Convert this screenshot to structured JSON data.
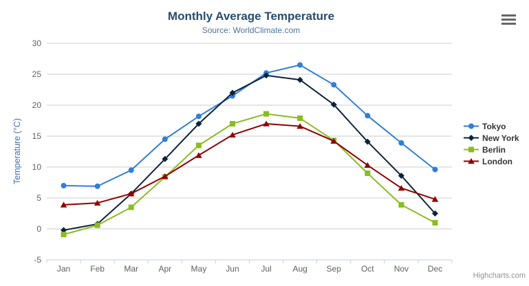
{
  "credits": "Highcharts.com",
  "menu_icon": "hamburger-menu",
  "colors": {
    "title": "#274b6d",
    "subtitle": "#4d759e",
    "y_axis_title": "#4572a7",
    "tick_label": "#606060",
    "axis_line": "#c0d0e0",
    "grid_line": "#cccccc",
    "legend_text": "#333333",
    "credits_text": "#909090",
    "menu_icon": "#666666"
  },
  "chart_data": {
    "type": "line",
    "title": "Monthly Average Temperature",
    "subtitle": "Source: WorldClimate.com",
    "xlabel": "",
    "ylabel": "Temperature (°C)",
    "ylim": [
      -5,
      30
    ],
    "yticks": [
      -5,
      0,
      5,
      10,
      15,
      20,
      25,
      30
    ],
    "grid": true,
    "legend_position": "right",
    "categories": [
      "Jan",
      "Feb",
      "Mar",
      "Apr",
      "May",
      "Jun",
      "Jul",
      "Aug",
      "Sep",
      "Oct",
      "Nov",
      "Dec"
    ],
    "series": [
      {
        "name": "Tokyo",
        "color": "#2f7ed8",
        "symbol": "circle",
        "values": [
          7.0,
          6.9,
          9.5,
          14.5,
          18.2,
          21.5,
          25.2,
          26.5,
          23.3,
          18.3,
          13.9,
          9.6
        ]
      },
      {
        "name": "New York",
        "color": "#0d233a",
        "symbol": "diamond",
        "values": [
          -0.2,
          0.8,
          5.7,
          11.3,
          17.0,
          22.0,
          24.8,
          24.1,
          20.1,
          14.1,
          8.6,
          2.5
        ]
      },
      {
        "name": "Berlin",
        "color": "#8bbc21",
        "symbol": "square",
        "values": [
          -0.9,
          0.6,
          3.5,
          8.4,
          13.5,
          17.0,
          18.6,
          17.9,
          14.3,
          9.0,
          3.9,
          1.0
        ]
      },
      {
        "name": "London",
        "color": "#910000",
        "symbol": "triangle",
        "values": [
          3.9,
          4.2,
          5.7,
          8.5,
          11.9,
          15.2,
          17.0,
          16.6,
          14.2,
          10.3,
          6.6,
          4.8
        ]
      }
    ]
  }
}
